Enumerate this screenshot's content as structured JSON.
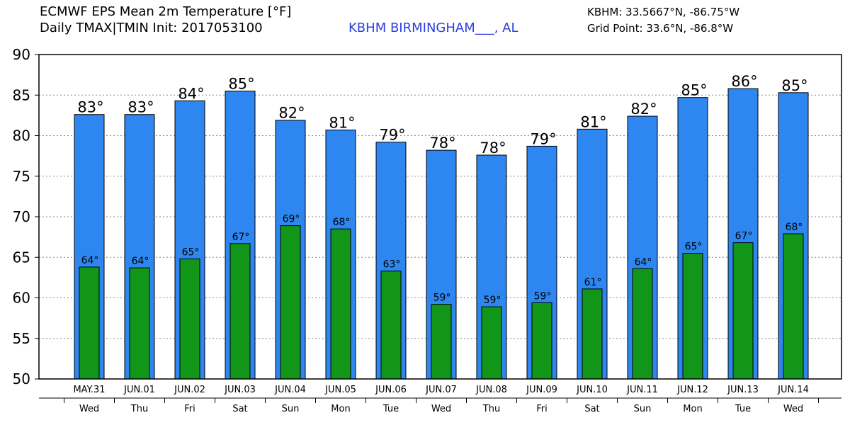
{
  "header": {
    "title_line1": "ECMWF EPS Mean 2m Temperature [°F]",
    "title_line2": "Daily TMAX|TMIN Init: 2017053100",
    "location": "KBHM BIRMINGHAM___, AL",
    "station_coords": "KBHM: 33.5667°N, -86.75°W",
    "grid_point": "Grid Point: 33.6°N, -86.8°W"
  },
  "colors": {
    "max_bar": "#2e87f0",
    "min_bar": "#12961a",
    "location_text": "#2a3fe0"
  },
  "chart_data": {
    "type": "bar",
    "title": "ECMWF EPS Mean 2m Temperature [°F]",
    "xlabel": "",
    "ylabel": "",
    "ylim": [
      50,
      90
    ],
    "yticks": [
      50,
      55,
      60,
      65,
      70,
      75,
      80,
      85,
      90
    ],
    "grid": true,
    "categories": [
      "MAY.31",
      "JUN.01",
      "JUN.02",
      "JUN.03",
      "JUN.04",
      "JUN.05",
      "JUN.06",
      "JUN.07",
      "JUN.08",
      "JUN.09",
      "JUN.10",
      "JUN.11",
      "JUN.12",
      "JUN.13",
      "JUN.14"
    ],
    "weekdays": [
      "Wed",
      "Thu",
      "Fri",
      "Sat",
      "Sun",
      "Mon",
      "Tue",
      "Wed",
      "Thu",
      "Fri",
      "Sat",
      "Sun",
      "Mon",
      "Tue",
      "Wed"
    ],
    "series": [
      {
        "name": "TMAX",
        "values": [
          82.6,
          82.6,
          84.3,
          85.5,
          81.9,
          80.7,
          79.2,
          78.2,
          77.6,
          78.7,
          80.8,
          82.4,
          84.7,
          85.8,
          85.3
        ],
        "labels": [
          "83°",
          "83°",
          "84°",
          "85°",
          "82°",
          "81°",
          "79°",
          "78°",
          "78°",
          "79°",
          "81°",
          "82°",
          "85°",
          "86°",
          "85°"
        ]
      },
      {
        "name": "TMIN",
        "values": [
          63.8,
          63.7,
          64.8,
          66.7,
          68.9,
          68.5,
          63.3,
          59.2,
          58.9,
          59.4,
          61.1,
          63.6,
          65.5,
          66.8,
          67.9
        ],
        "labels": [
          "64°",
          "64°",
          "65°",
          "67°",
          "69°",
          "68°",
          "63°",
          "59°",
          "59°",
          "59°",
          "61°",
          "64°",
          "65°",
          "67°",
          "68°"
        ]
      }
    ]
  }
}
